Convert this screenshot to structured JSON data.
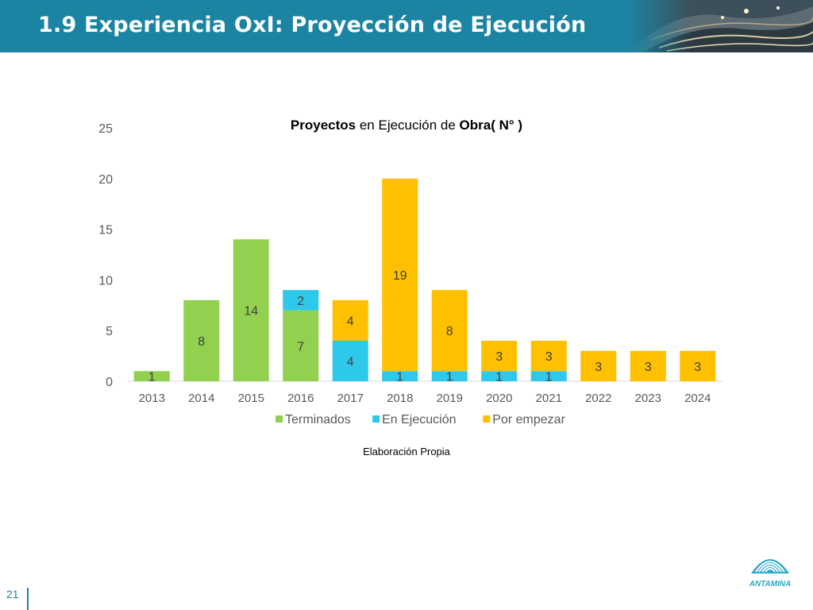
{
  "header": {
    "title": "1.9 Experiencia OxI: Proyección de Ejecución"
  },
  "slide": {
    "number": "21"
  },
  "caption": "Elaboración Propia",
  "logo": {
    "text": "ANTAMINA"
  },
  "chart_data": {
    "type": "bar",
    "stacked": true,
    "title_parts": [
      {
        "text": "Proyectos",
        "bold": true
      },
      {
        "text": " en Ejecución de ",
        "bold": false
      },
      {
        "text": "Obra( N°  )",
        "bold": true
      }
    ],
    "categories": [
      "2013",
      "2014",
      "2015",
      "2016",
      "2017",
      "2018",
      "2019",
      "2020",
      "2021",
      "2022",
      "2023",
      "2024"
    ],
    "series": [
      {
        "name": "Terminados",
        "color": "#92d050",
        "values": [
          1,
          8,
          14,
          7,
          0,
          0,
          0,
          0,
          0,
          0,
          0,
          0
        ]
      },
      {
        "name": "En Ejecución",
        "color": "#2ec8ea",
        "values": [
          0,
          0,
          0,
          2,
          4,
          1,
          1,
          1,
          1,
          0,
          0,
          0
        ]
      },
      {
        "name": "Por empezar",
        "color": "#ffc000",
        "values": [
          0,
          0,
          0,
          0,
          4,
          19,
          8,
          3,
          3,
          3,
          3,
          3
        ]
      }
    ],
    "ylim": [
      0,
      25
    ],
    "yticks": [
      0,
      5,
      10,
      15,
      20,
      25
    ],
    "grid": false,
    "legend_position": "bottom"
  }
}
